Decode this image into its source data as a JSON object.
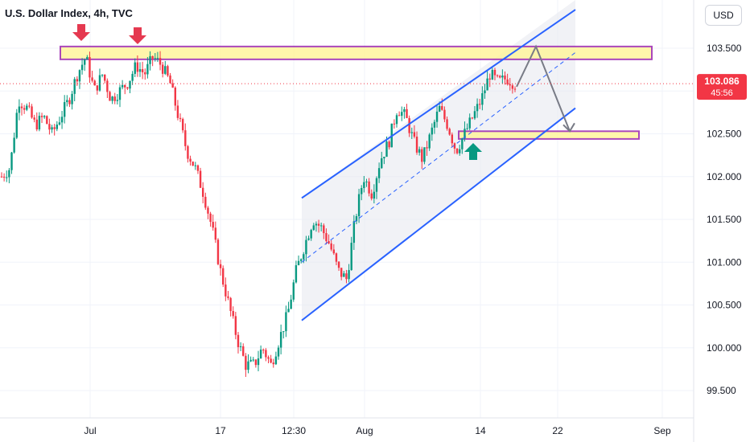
{
  "header": {
    "title": "U.S. Dollar Index, 4h, TVC",
    "currency": "USD"
  },
  "price_label": {
    "price": "103.086",
    "countdown": "45:56"
  },
  "colors": {
    "up": "#089981",
    "down": "#f23645",
    "channel": "#2962ff",
    "zone_fill": "#fff59d",
    "zone_border": "#9c27b0",
    "arrow_red": "#e53950",
    "arrow_green": "#089981",
    "projection": "#787b86"
  },
  "chart_data": {
    "type": "candlestick",
    "y_ticks": [
      "103.500",
      "103.000",
      "102.500",
      "102.000",
      "101.500",
      "101.000",
      "100.500",
      "100.000",
      "99.500"
    ],
    "x_ticks": [
      "Jul",
      "17",
      "12:30",
      "Aug",
      "14",
      "22",
      "Sep"
    ],
    "ylim": [
      99.45,
      103.95
    ],
    "last_price": 103.086,
    "resistance_zone": [
      103.37,
      103.52
    ],
    "support_zone": [
      102.44,
      102.53
    ],
    "path": [
      102.0,
      102.1,
      102.9,
      102.8,
      102.6,
      102.7,
      102.5,
      102.7,
      102.9,
      103.2,
      103.4,
      103.0,
      103.2,
      102.9,
      103.0,
      103.1,
      103.3,
      103.2,
      103.4,
      103.3,
      103.1,
      102.7,
      102.3,
      102.1,
      101.8,
      101.4,
      100.9,
      100.5,
      100.1,
      99.8,
      99.8,
      100.0,
      99.8,
      100.1,
      100.4,
      100.9,
      101.2,
      101.5,
      101.4,
      101.2,
      100.9,
      100.8,
      101.5,
      102.0,
      101.8,
      102.2,
      102.4,
      102.8,
      102.7,
      102.4,
      102.2,
      102.5,
      102.8,
      102.6,
      102.3,
      102.5,
      102.7,
      102.9,
      103.2,
      103.1,
      103.15,
      103.086
    ],
    "channel": {
      "upper": [
        [
          22,
          101.75
        ],
        [
          44,
          103.95
        ]
      ],
      "lower": [
        [
          22,
          100.32
        ],
        [
          44,
          102.8
        ]
      ],
      "mid": [
        [
          22,
          101.0
        ],
        [
          44,
          103.45
        ]
      ]
    },
    "projection": [
      [
        40,
        103.05
      ],
      [
        41.5,
        103.52
      ],
      [
        43.5,
        102.53
      ]
    ]
  }
}
